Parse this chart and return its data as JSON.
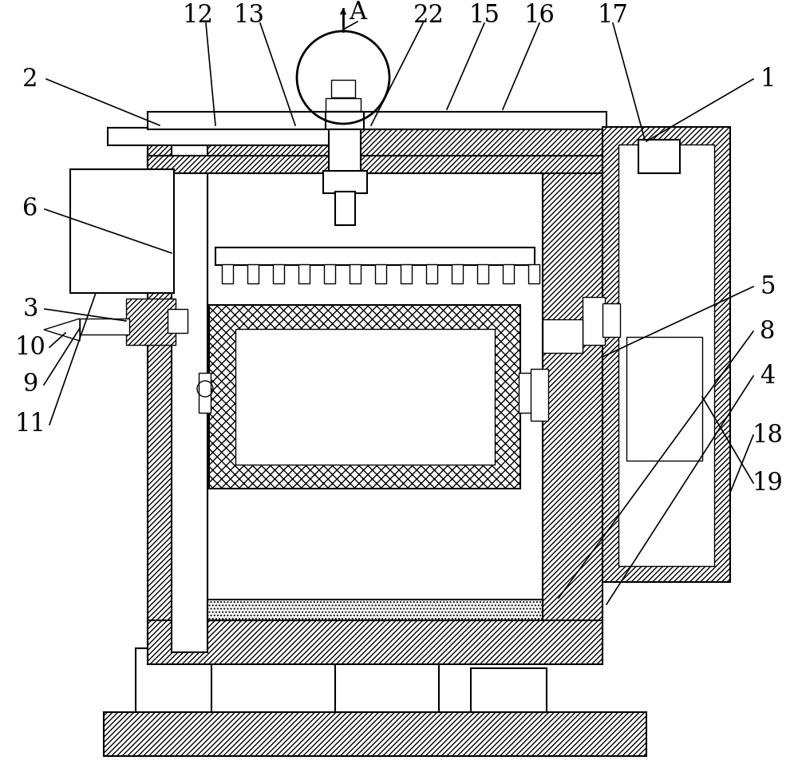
{
  "bg_color": "#ffffff",
  "lw_main": 1.5,
  "lw_thin": 1.0,
  "label_fontsize": 22
}
